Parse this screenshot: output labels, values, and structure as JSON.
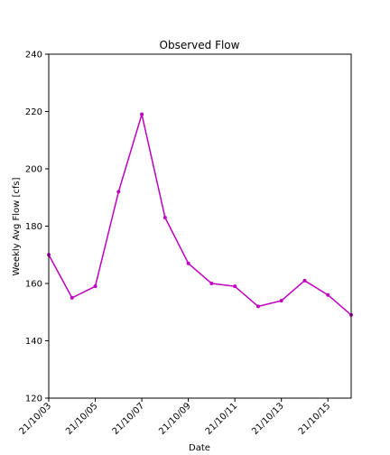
{
  "chart_data": {
    "type": "line",
    "title": "Observed Flow",
    "xlabel": "Date",
    "ylabel": "Weekly Avg Flow [cfs]",
    "x": [
      "21/10/03",
      "21/10/04",
      "21/10/05",
      "21/10/06",
      "21/10/07",
      "21/10/08",
      "21/10/09",
      "21/10/10",
      "21/10/11",
      "21/10/12",
      "21/10/13",
      "21/10/14",
      "21/10/15",
      "21/10/16"
    ],
    "xticks": [
      "21/10/03",
      "21/10/05",
      "21/10/07",
      "21/10/09",
      "21/10/11",
      "21/10/13",
      "21/10/15"
    ],
    "ylim": [
      120,
      240
    ],
    "yticks": [
      120,
      140,
      160,
      180,
      200,
      220,
      240
    ],
    "series": [
      {
        "values": [
          170,
          155,
          159,
          192,
          219,
          183,
          167,
          160,
          159,
          152,
          154,
          161,
          156,
          149
        ],
        "color": "#bf00bf"
      }
    ],
    "grid": false,
    "legend": "none"
  }
}
